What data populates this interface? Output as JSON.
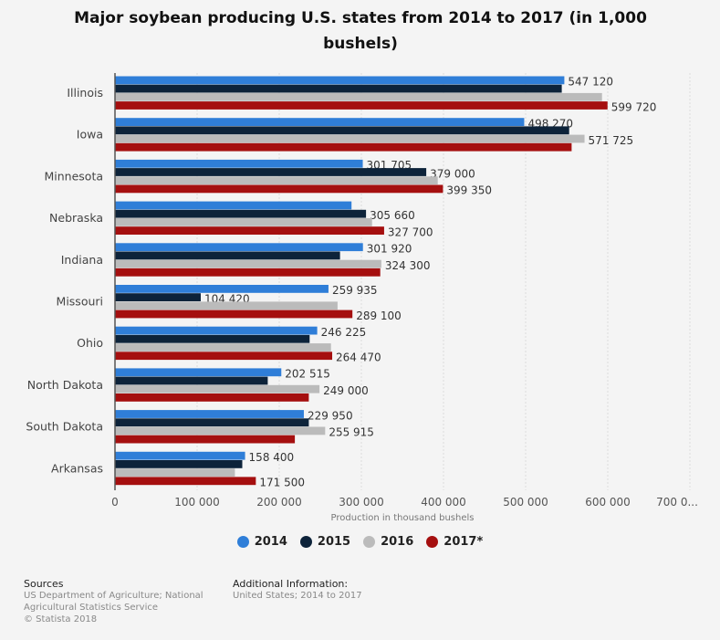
{
  "chart_data": {
    "type": "bar",
    "orientation": "horizontal",
    "title": "Major soybean producing U.S. states from 2014 to 2017 (in 1,000 bushels)",
    "xlabel": "Production in thousand bushels",
    "ylabel": "",
    "xlim": [
      0,
      700000
    ],
    "xticks": [
      "0",
      "100 000",
      "200 000",
      "300 000",
      "400 000",
      "500 000",
      "600 000",
      "700 0..."
    ],
    "tick_values": [
      0,
      100000,
      200000,
      300000,
      400000,
      500000,
      600000,
      700000
    ],
    "grid": true,
    "legend_position": "bottom",
    "categories": [
      "Illinois",
      "Iowa",
      "Minnesota",
      "Nebraska",
      "Indiana",
      "Missouri",
      "Ohio",
      "North Dakota",
      "South Dakota",
      "Arkansas"
    ],
    "series": [
      {
        "name": "2014",
        "color": "#2f7ed8",
        "values": [
          547120,
          498270,
          301705,
          288000,
          301920,
          259935,
          246225,
          202515,
          229950,
          158400
        ],
        "labels": [
          "547 120",
          "498 270",
          "301 705",
          null,
          "301 920",
          "259 935",
          "246 225",
          "202 515",
          "229 950",
          "158 400"
        ]
      },
      {
        "name": "2015",
        "color": "#0d233a",
        "values": [
          544000,
          553000,
          379000,
          305660,
          274000,
          104420,
          237000,
          186000,
          236000,
          155000
        ],
        "labels": [
          null,
          null,
          "379 000",
          "305 660",
          null,
          "104 420",
          null,
          null,
          null,
          null
        ]
      },
      {
        "name": "2016",
        "color": "#bbbbbb",
        "values": [
          593000,
          571725,
          393000,
          313000,
          324300,
          271000,
          263000,
          249000,
          255915,
          146000
        ],
        "labels": [
          null,
          "571 725",
          null,
          null,
          "324 300",
          null,
          null,
          "249 000",
          "255 915",
          null
        ]
      },
      {
        "name": "2017*",
        "color": "#a50f0f",
        "values": [
          599720,
          556000,
          399350,
          327700,
          323000,
          289100,
          264470,
          236000,
          219000,
          171500
        ],
        "labels": [
          "599 720",
          null,
          "399 350",
          "327 700",
          null,
          "289 100",
          "264 470",
          null,
          null,
          "171 500"
        ]
      }
    ]
  },
  "footer": {
    "sources_title": "Sources",
    "sources_line1": "US Department of Agriculture; National",
    "sources_line2": "Agricultural Statistics Service",
    "copyright": "© Statista 2018",
    "additional_title": "Additional Information:",
    "additional_text": "United States; 2014 to 2017"
  }
}
